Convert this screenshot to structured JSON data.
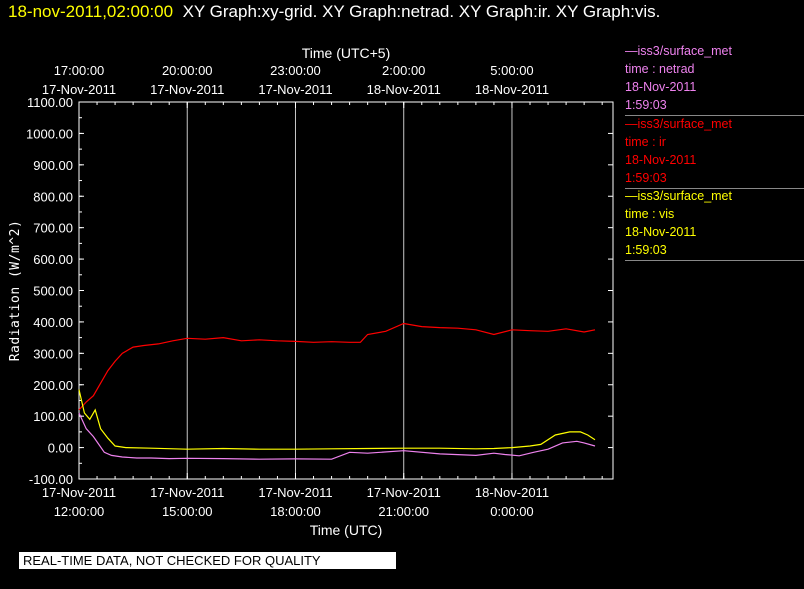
{
  "header": {
    "timestamp": "18-nov-2011,02:00:00",
    "graphs": "XY Graph:xy-grid.  XY Graph:netrad.  XY Graph:ir.  XY Graph:vis."
  },
  "disclaimer": "REAL-TIME DATA, NOT CHECKED FOR QUALITY",
  "legend": [
    {
      "source": "—iss3/surface_met",
      "field": "time : netrad",
      "date": "18-Nov-2011",
      "time": "1:59:03",
      "color": "#ee82ee"
    },
    {
      "source": "—iss3/surface_met",
      "field": "time : ir",
      "date": "18-Nov-2011",
      "time": "1:59:03",
      "color": "#ff0000"
    },
    {
      "source": "—iss3/surface_met",
      "field": "time : vis",
      "date": "18-Nov-2011",
      "time": "1:59:03",
      "color": "#ffff00"
    }
  ],
  "chart_data": {
    "type": "line",
    "ylabel": "Radiation (W/m^2)",
    "xlabel": "Time (UTC)",
    "x2label": "Time (UTC+5)",
    "ylim": [
      -100,
      1100
    ],
    "xlim_hours": [
      0,
      14.8
    ],
    "grid": true,
    "yticks": [
      "1100.00",
      "1000.00",
      "900.00",
      "800.00",
      "700.00",
      "600.00",
      "500.00",
      "400.00",
      "300.00",
      "200.00",
      "100.00",
      "0.00",
      "-100.00"
    ],
    "xticks_bottom": [
      {
        "hour": 0,
        "date": "17-Nov-2011",
        "time": "12:00:00"
      },
      {
        "hour": 3,
        "date": "17-Nov-2011",
        "time": "15:00:00"
      },
      {
        "hour": 6,
        "date": "17-Nov-2011",
        "time": "18:00:00"
      },
      {
        "hour": 9,
        "date": "17-Nov-2011",
        "time": "21:00:00"
      },
      {
        "hour": 12,
        "date": "18-Nov-2011",
        "time": "0:00:00"
      }
    ],
    "xticks_top": [
      {
        "hour": 0,
        "time": "17:00:00",
        "date": "17-Nov-2011"
      },
      {
        "hour": 3,
        "time": "20:00:00",
        "date": "17-Nov-2011"
      },
      {
        "hour": 6,
        "time": "23:00:00",
        "date": "17-Nov-2011"
      },
      {
        "hour": 9,
        "time": "2:00:00",
        "date": "18-Nov-2011"
      },
      {
        "hour": 12,
        "time": "5:00:00",
        "date": "18-Nov-2011"
      }
    ],
    "series": [
      {
        "name": "netrad",
        "color": "#ee82ee",
        "x": [
          0,
          0.2,
          0.4,
          0.55,
          0.7,
          0.9,
          1.2,
          1.6,
          2.0,
          2.5,
          3.0,
          4.0,
          5.0,
          6.0,
          7.0,
          7.5,
          8.0,
          9.0,
          10.0,
          11.0,
          11.5,
          11.8,
          12.2,
          12.6,
          13.0,
          13.4,
          13.8,
          14.0,
          14.3
        ],
        "y": [
          110,
          60,
          35,
          10,
          -15,
          -25,
          -30,
          -33,
          -33,
          -35,
          -34,
          -35,
          -37,
          -36,
          -37,
          -15,
          -18,
          -10,
          -20,
          -25,
          -18,
          -22,
          -26,
          -15,
          -5,
          15,
          20,
          15,
          5
        ]
      },
      {
        "name": "ir",
        "color": "#ff0000",
        "x": [
          0,
          0.2,
          0.4,
          0.6,
          0.8,
          1.0,
          1.2,
          1.5,
          1.8,
          2.2,
          2.6,
          3.0,
          3.5,
          4.0,
          4.5,
          5.0,
          5.5,
          6.0,
          6.5,
          7.0,
          7.5,
          7.8,
          8.0,
          8.5,
          9.0,
          9.5,
          10.0,
          10.5,
          11.0,
          11.5,
          12.0,
          12.5,
          13.0,
          13.5,
          14.0,
          14.3
        ],
        "y": [
          120,
          145,
          165,
          205,
          245,
          275,
          300,
          320,
          325,
          330,
          340,
          348,
          345,
          350,
          340,
          343,
          340,
          338,
          335,
          337,
          335,
          335,
          360,
          370,
          395,
          385,
          382,
          380,
          375,
          360,
          375,
          372,
          370,
          378,
          368,
          375
        ]
      },
      {
        "name": "vis",
        "color": "#ffff00",
        "x": [
          0,
          0.15,
          0.3,
          0.45,
          0.6,
          0.8,
          1.0,
          1.3,
          2.0,
          3.0,
          4.0,
          5.0,
          6.0,
          7.0,
          8.0,
          9.0,
          10.0,
          11.0,
          11.5,
          12.0,
          12.5,
          12.8,
          13.2,
          13.6,
          13.9,
          14.1,
          14.3
        ],
        "y": [
          185,
          110,
          90,
          120,
          60,
          30,
          5,
          0,
          -2,
          -5,
          -3,
          -5,
          -5,
          -4,
          -3,
          -2,
          -2,
          -4,
          -3,
          0,
          5,
          10,
          40,
          50,
          50,
          40,
          25
        ]
      }
    ]
  }
}
